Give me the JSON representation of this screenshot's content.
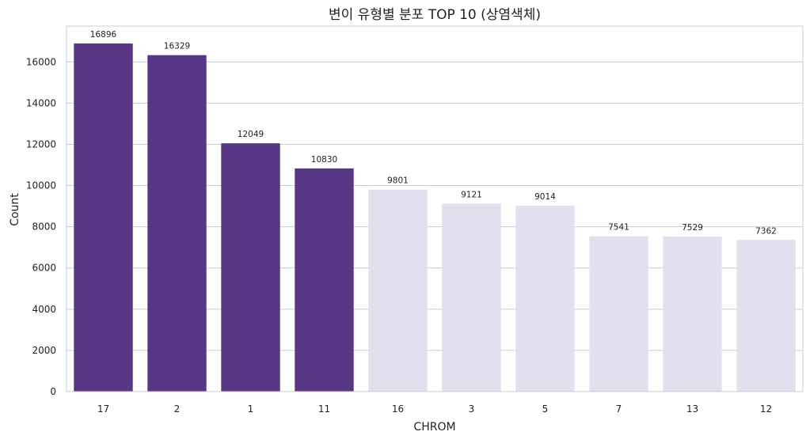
{
  "chart_data": {
    "type": "bar",
    "title": "변이 유형별 분포 TOP 10 (상염색체)",
    "xlabel": "CHROM",
    "ylabel": "Count",
    "categories": [
      "17",
      "2",
      "1",
      "11",
      "16",
      "3",
      "5",
      "7",
      "13",
      "12"
    ],
    "values": [
      16896,
      16329,
      12049,
      10830,
      9801,
      9121,
      9014,
      7541,
      7529,
      7362
    ],
    "ylim": [
      0,
      17738
    ],
    "yticks": [
      0,
      2000,
      4000,
      6000,
      8000,
      10000,
      12000,
      14000,
      16000
    ],
    "grid": true,
    "colors": {
      "highlight": "#583785",
      "default": "#e0e0ee"
    },
    "highlight_count": 4
  }
}
